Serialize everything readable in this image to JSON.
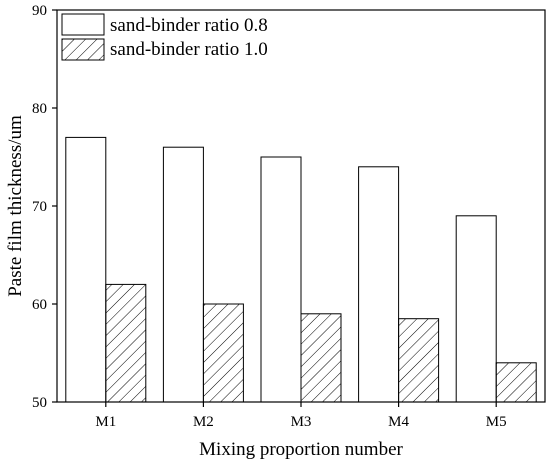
{
  "chart_data": {
    "type": "bar",
    "title": "",
    "xlabel": "Mixing proportion number",
    "ylabel": "Paste film thickness/um",
    "categories": [
      "M1",
      "M2",
      "M3",
      "M4",
      "M5"
    ],
    "ylim": [
      50,
      90
    ],
    "yticks": [
      "50",
      "60",
      "70",
      "80",
      "90"
    ],
    "series": [
      {
        "name": "sand-binder ratio 0.8",
        "values": [
          77,
          76,
          75,
          74,
          69
        ],
        "fill": "white"
      },
      {
        "name": "sand-binder ratio 1.0",
        "values": [
          62,
          60,
          59,
          58.5,
          54
        ],
        "fill": "hatched"
      }
    ],
    "legend_position": "top-left",
    "grid": false
  }
}
